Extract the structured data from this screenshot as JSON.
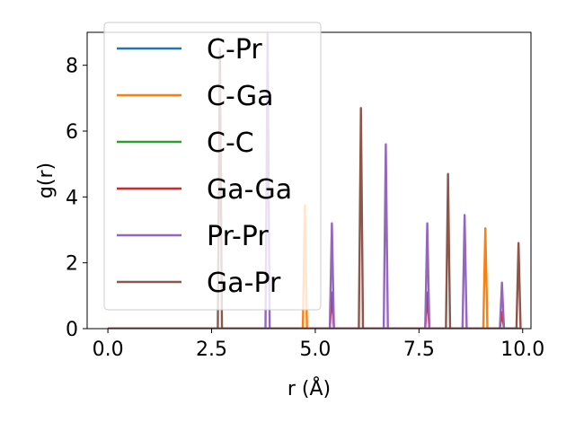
{
  "chart_data": {
    "type": "line",
    "xlabel": "r (Å)",
    "ylabel": "g(r)",
    "xlim": [
      -0.5,
      10.2
    ],
    "ylim": [
      0,
      9.0
    ],
    "xticks": [
      0.0,
      2.5,
      5.0,
      7.5,
      10.0
    ],
    "xtick_labels": [
      "0.0",
      "2.5",
      "5.0",
      "7.5",
      "10.0"
    ],
    "yticks": [
      0,
      2,
      4,
      6,
      8
    ],
    "ytick_labels": [
      "0",
      "2",
      "4",
      "6",
      "8"
    ],
    "grid": false,
    "legend_position": "top-left",
    "x_range": [
      0,
      9.9
    ],
    "peak_half_width": 0.05,
    "series": [
      {
        "name": "C-Pr",
        "color": "#1f77b4",
        "peaks": []
      },
      {
        "name": "C-Ga",
        "color": "#ff7f0e",
        "peaks": [
          [
            4.75,
            3.75
          ],
          [
            9.1,
            3.05
          ]
        ]
      },
      {
        "name": "C-C",
        "color": "#2ca02c",
        "peaks": []
      },
      {
        "name": "Ga-Ga",
        "color": "#d62728",
        "peaks": [
          [
            5.4,
            1.1
          ],
          [
            7.7,
            1.1
          ],
          [
            9.5,
            0.5
          ]
        ]
      },
      {
        "name": "Pr-Pr",
        "color": "#9467bd",
        "peaks": [
          [
            3.85,
            9.0
          ],
          [
            5.4,
            3.2
          ],
          [
            6.7,
            5.6
          ],
          [
            7.7,
            3.2
          ],
          [
            8.6,
            3.45
          ],
          [
            9.5,
            1.4
          ]
        ]
      },
      {
        "name": "Ga-Pr",
        "color": "#8c564b",
        "peaks": [
          [
            2.7,
            8.5
          ],
          [
            6.1,
            6.7
          ],
          [
            8.2,
            4.7
          ],
          [
            9.9,
            2.6
          ]
        ]
      }
    ]
  }
}
